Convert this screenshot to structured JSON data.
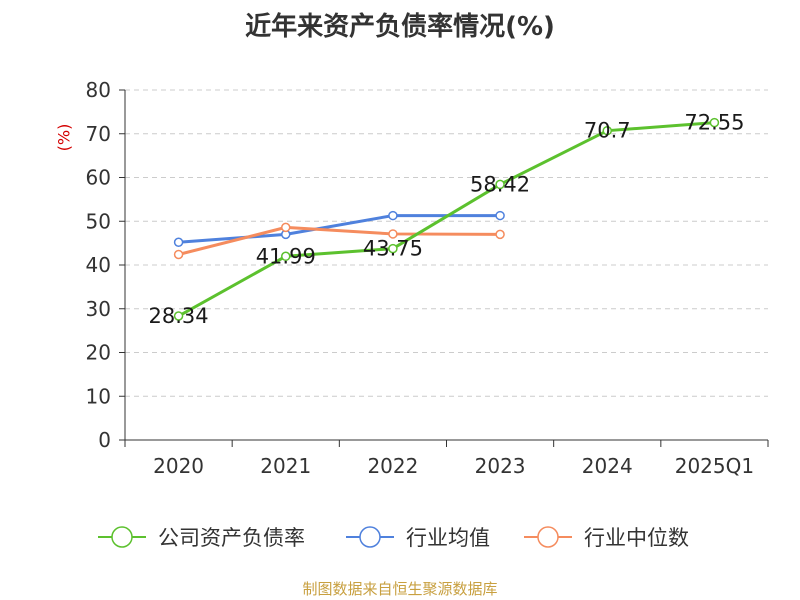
{
  "chart_data": {
    "type": "line",
    "title": "近年来资产负债率情况(%)",
    "yunit": "(%)",
    "categories": [
      "2020",
      "2021",
      "2022",
      "2023",
      "2024",
      "2025Q1"
    ],
    "ylim": [
      0,
      80
    ],
    "yticks": [
      0,
      10,
      20,
      30,
      40,
      50,
      60,
      70,
      80
    ],
    "grid": true,
    "legend_position": "bottom",
    "series": [
      {
        "name": "公司资产负债率",
        "color": "#5cc12e",
        "values": [
          28.34,
          41.99,
          43.75,
          58.42,
          70.7,
          72.55
        ],
        "labels": [
          "28.34",
          "41.99",
          "43.75",
          "58.42",
          "70.7",
          "72.55"
        ]
      },
      {
        "name": "行业均值",
        "color": "#4f81dd",
        "values": [
          45.2,
          47.0,
          51.3,
          51.3,
          null,
          null
        ]
      },
      {
        "name": "行业中位数",
        "color": "#f58c5e",
        "values": [
          42.4,
          48.6,
          47.1,
          47.0,
          null,
          null
        ]
      }
    ]
  },
  "footer": {
    "source": "制图数据来自恒生聚源数据库"
  }
}
